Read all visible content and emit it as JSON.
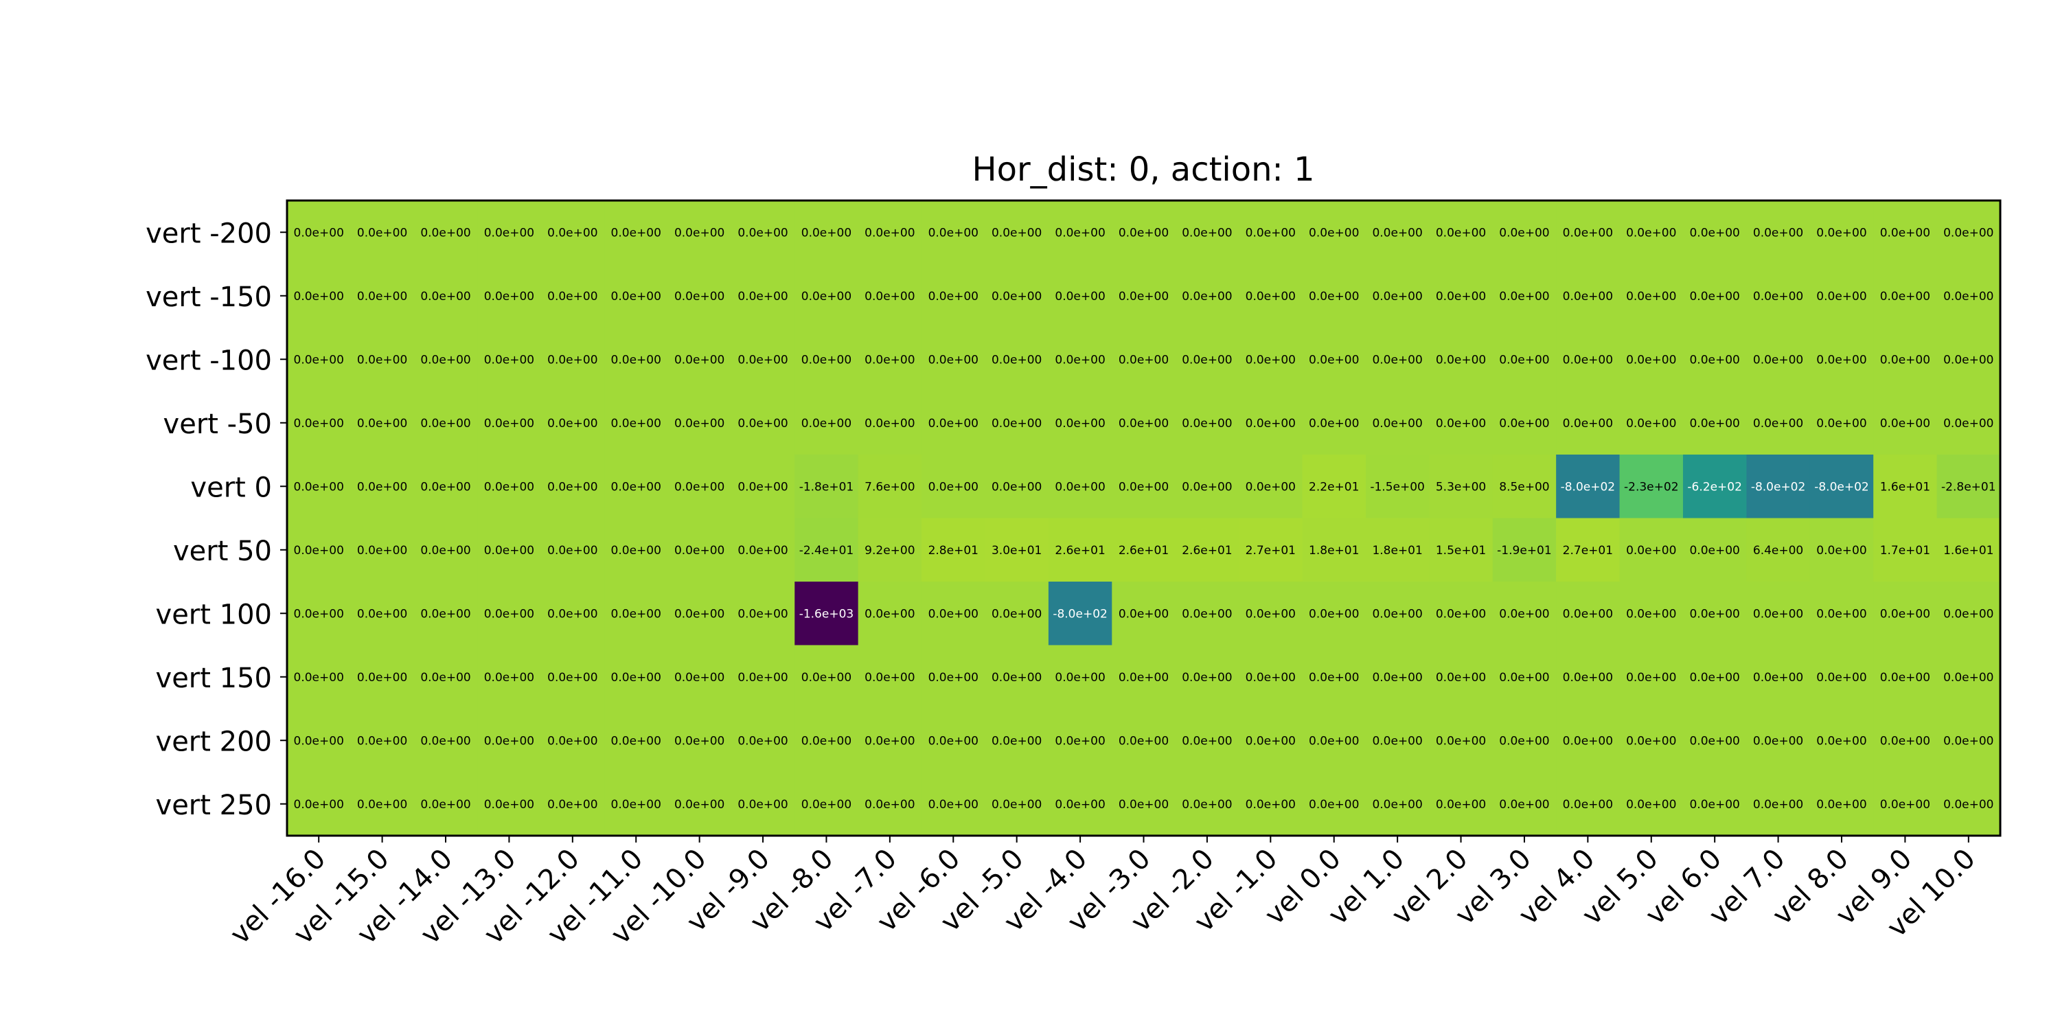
{
  "chart_data": {
    "type": "heatmap",
    "title": "Hor_dist: 0, action: 1",
    "xlabel": "",
    "ylabel": "",
    "x_categories": [
      "vel -16.0",
      "vel -15.0",
      "vel -14.0",
      "vel -13.0",
      "vel -12.0",
      "vel -11.0",
      "vel -10.0",
      "vel -9.0",
      "vel -8.0",
      "vel -7.0",
      "vel -6.0",
      "vel -5.0",
      "vel -4.0",
      "vel -3.0",
      "vel -2.0",
      "vel -1.0",
      "vel 0.0",
      "vel 1.0",
      "vel 2.0",
      "vel 3.0",
      "vel 4.0",
      "vel 5.0",
      "vel 6.0",
      "vel 7.0",
      "vel 8.0",
      "vel 9.0",
      "vel 10.0"
    ],
    "y_categories": [
      "vert -200",
      "vert -150",
      "vert -100",
      "vert -50",
      "vert 0",
      "vert 50",
      "vert 100",
      "vert 150",
      "vert 200",
      "vert 250"
    ],
    "colormap": "viridis",
    "value_range": [
      -1600,
      260
    ],
    "grid": false,
    "legend": "none",
    "values": [
      [
        0,
        0,
        0,
        0,
        0,
        0,
        0,
        0,
        0,
        0,
        0,
        0,
        0,
        0,
        0,
        0,
        0,
        0,
        0,
        0,
        0,
        0,
        0,
        0,
        0,
        0,
        0
      ],
      [
        0,
        0,
        0,
        0,
        0,
        0,
        0,
        0,
        0,
        0,
        0,
        0,
        0,
        0,
        0,
        0,
        0,
        0,
        0,
        0,
        0,
        0,
        0,
        0,
        0,
        0,
        0
      ],
      [
        0,
        0,
        0,
        0,
        0,
        0,
        0,
        0,
        0,
        0,
        0,
        0,
        0,
        0,
        0,
        0,
        0,
        0,
        0,
        0,
        0,
        0,
        0,
        0,
        0,
        0,
        0
      ],
      [
        0,
        0,
        0,
        0,
        0,
        0,
        0,
        0,
        0,
        0,
        0,
        0,
        0,
        0,
        0,
        0,
        0,
        0,
        0,
        0,
        0,
        0,
        0,
        0,
        0,
        0,
        0
      ],
      [
        0,
        0,
        0,
        0,
        0,
        0,
        0,
        0,
        -18,
        7.6,
        0,
        0,
        0,
        0,
        0,
        0,
        22,
        -1.5,
        5.3,
        8.5,
        -800,
        -230,
        -620,
        -800,
        -800,
        16,
        -28
      ],
      [
        0,
        0,
        0,
        0,
        0,
        0,
        0,
        0,
        -24,
        9.2,
        28,
        30,
        26,
        26,
        26,
        27,
        18,
        18,
        15,
        -19,
        27,
        0,
        0,
        6.4,
        0,
        17,
        16
      ],
      [
        0,
        0,
        0,
        0,
        0,
        0,
        0,
        0,
        -1600,
        0,
        0,
        0,
        -800,
        0,
        0,
        0,
        0,
        0,
        0,
        0,
        0,
        0,
        0,
        0,
        0,
        0,
        0
      ],
      [
        0,
        0,
        0,
        0,
        0,
        0,
        0,
        0,
        0,
        0,
        0,
        0,
        0,
        0,
        0,
        0,
        0,
        0,
        0,
        0,
        0,
        0,
        0,
        0,
        0,
        0,
        0
      ],
      [
        0,
        0,
        0,
        0,
        0,
        0,
        0,
        0,
        0,
        0,
        0,
        0,
        0,
        0,
        0,
        0,
        0,
        0,
        0,
        0,
        0,
        0,
        0,
        0,
        0,
        0,
        0
      ],
      [
        0,
        0,
        0,
        0,
        0,
        0,
        0,
        0,
        0,
        0,
        0,
        0,
        0,
        0,
        0,
        0,
        0,
        0,
        0,
        0,
        0,
        0,
        0,
        0,
        0,
        0,
        0
      ]
    ],
    "labels": [
      [
        "0.0e+00",
        "0.0e+00",
        "0.0e+00",
        "0.0e+00",
        "0.0e+00",
        "0.0e+00",
        "0.0e+00",
        "0.0e+00",
        "0.0e+00",
        "0.0e+00",
        "0.0e+00",
        "0.0e+00",
        "0.0e+00",
        "0.0e+00",
        "0.0e+00",
        "0.0e+00",
        "0.0e+00",
        "0.0e+00",
        "0.0e+00",
        "0.0e+00",
        "0.0e+00",
        "0.0e+00",
        "0.0e+00",
        "0.0e+00",
        "0.0e+00",
        "0.0e+00",
        "0.0e+00"
      ],
      [
        "0.0e+00",
        "0.0e+00",
        "0.0e+00",
        "0.0e+00",
        "0.0e+00",
        "0.0e+00",
        "0.0e+00",
        "0.0e+00",
        "0.0e+00",
        "0.0e+00",
        "0.0e+00",
        "0.0e+00",
        "0.0e+00",
        "0.0e+00",
        "0.0e+00",
        "0.0e+00",
        "0.0e+00",
        "0.0e+00",
        "0.0e+00",
        "0.0e+00",
        "0.0e+00",
        "0.0e+00",
        "0.0e+00",
        "0.0e+00",
        "0.0e+00",
        "0.0e+00",
        "0.0e+00"
      ],
      [
        "0.0e+00",
        "0.0e+00",
        "0.0e+00",
        "0.0e+00",
        "0.0e+00",
        "0.0e+00",
        "0.0e+00",
        "0.0e+00",
        "0.0e+00",
        "0.0e+00",
        "0.0e+00",
        "0.0e+00",
        "0.0e+00",
        "0.0e+00",
        "0.0e+00",
        "0.0e+00",
        "0.0e+00",
        "0.0e+00",
        "0.0e+00",
        "0.0e+00",
        "0.0e+00",
        "0.0e+00",
        "0.0e+00",
        "0.0e+00",
        "0.0e+00",
        "0.0e+00",
        "0.0e+00"
      ],
      [
        "0.0e+00",
        "0.0e+00",
        "0.0e+00",
        "0.0e+00",
        "0.0e+00",
        "0.0e+00",
        "0.0e+00",
        "0.0e+00",
        "0.0e+00",
        "0.0e+00",
        "0.0e+00",
        "0.0e+00",
        "0.0e+00",
        "0.0e+00",
        "0.0e+00",
        "0.0e+00",
        "0.0e+00",
        "0.0e+00",
        "0.0e+00",
        "0.0e+00",
        "0.0e+00",
        "0.0e+00",
        "0.0e+00",
        "0.0e+00",
        "0.0e+00",
        "0.0e+00",
        "0.0e+00"
      ],
      [
        "0.0e+00",
        "0.0e+00",
        "0.0e+00",
        "0.0e+00",
        "0.0e+00",
        "0.0e+00",
        "0.0e+00",
        "0.0e+00",
        "-1.8e+01",
        "7.6e+00",
        "0.0e+00",
        "0.0e+00",
        "0.0e+00",
        "0.0e+00",
        "0.0e+00",
        "0.0e+00",
        "2.2e+01",
        "-1.5e+00",
        "5.3e+00",
        "8.5e+00",
        "-8.0e+02",
        "-2.3e+02",
        "-6.2e+02",
        "-8.0e+02",
        "-8.0e+02",
        "1.6e+01",
        "-2.8e+01"
      ],
      [
        "0.0e+00",
        "0.0e+00",
        "0.0e+00",
        "0.0e+00",
        "0.0e+00",
        "0.0e+00",
        "0.0e+00",
        "0.0e+00",
        "-2.4e+01",
        "9.2e+00",
        "2.8e+01",
        "3.0e+01",
        "2.6e+01",
        "2.6e+01",
        "2.6e+01",
        "2.7e+01",
        "1.8e+01",
        "1.8e+01",
        "1.5e+01",
        "-1.9e+01",
        "2.7e+01",
        "0.0e+00",
        "0.0e+00",
        "6.4e+00",
        "0.0e+00",
        "1.7e+01",
        "1.6e+01"
      ],
      [
        "0.0e+00",
        "0.0e+00",
        "0.0e+00",
        "0.0e+00",
        "0.0e+00",
        "0.0e+00",
        "0.0e+00",
        "0.0e+00",
        "-1.6e+03",
        "0.0e+00",
        "0.0e+00",
        "0.0e+00",
        "-8.0e+02",
        "0.0e+00",
        "0.0e+00",
        "0.0e+00",
        "0.0e+00",
        "0.0e+00",
        "0.0e+00",
        "0.0e+00",
        "0.0e+00",
        "0.0e+00",
        "0.0e+00",
        "0.0e+00",
        "0.0e+00",
        "0.0e+00",
        "0.0e+00"
      ],
      [
        "0.0e+00",
        "0.0e+00",
        "0.0e+00",
        "0.0e+00",
        "0.0e+00",
        "0.0e+00",
        "0.0e+00",
        "0.0e+00",
        "0.0e+00",
        "0.0e+00",
        "0.0e+00",
        "0.0e+00",
        "0.0e+00",
        "0.0e+00",
        "0.0e+00",
        "0.0e+00",
        "0.0e+00",
        "0.0e+00",
        "0.0e+00",
        "0.0e+00",
        "0.0e+00",
        "0.0e+00",
        "0.0e+00",
        "0.0e+00",
        "0.0e+00",
        "0.0e+00",
        "0.0e+00"
      ],
      [
        "0.0e+00",
        "0.0e+00",
        "0.0e+00",
        "0.0e+00",
        "0.0e+00",
        "0.0e+00",
        "0.0e+00",
        "0.0e+00",
        "0.0e+00",
        "0.0e+00",
        "0.0e+00",
        "0.0e+00",
        "0.0e+00",
        "0.0e+00",
        "0.0e+00",
        "0.0e+00",
        "0.0e+00",
        "0.0e+00",
        "0.0e+00",
        "0.0e+00",
        "0.0e+00",
        "0.0e+00",
        "0.0e+00",
        "0.0e+00",
        "0.0e+00",
        "0.0e+00",
        "0.0e+00"
      ],
      [
        "0.0e+00",
        "0.0e+00",
        "0.0e+00",
        "0.0e+00",
        "0.0e+00",
        "0.0e+00",
        "0.0e+00",
        "0.0e+00",
        "0.0e+00",
        "0.0e+00",
        "0.0e+00",
        "0.0e+00",
        "0.0e+00",
        "0.0e+00",
        "0.0e+00",
        "0.0e+00",
        "0.0e+00",
        "0.0e+00",
        "0.0e+00",
        "0.0e+00",
        "0.0e+00",
        "0.0e+00",
        "0.0e+00",
        "0.0e+00",
        "0.0e+00",
        "0.0e+00",
        "0.0e+00"
      ]
    ]
  }
}
